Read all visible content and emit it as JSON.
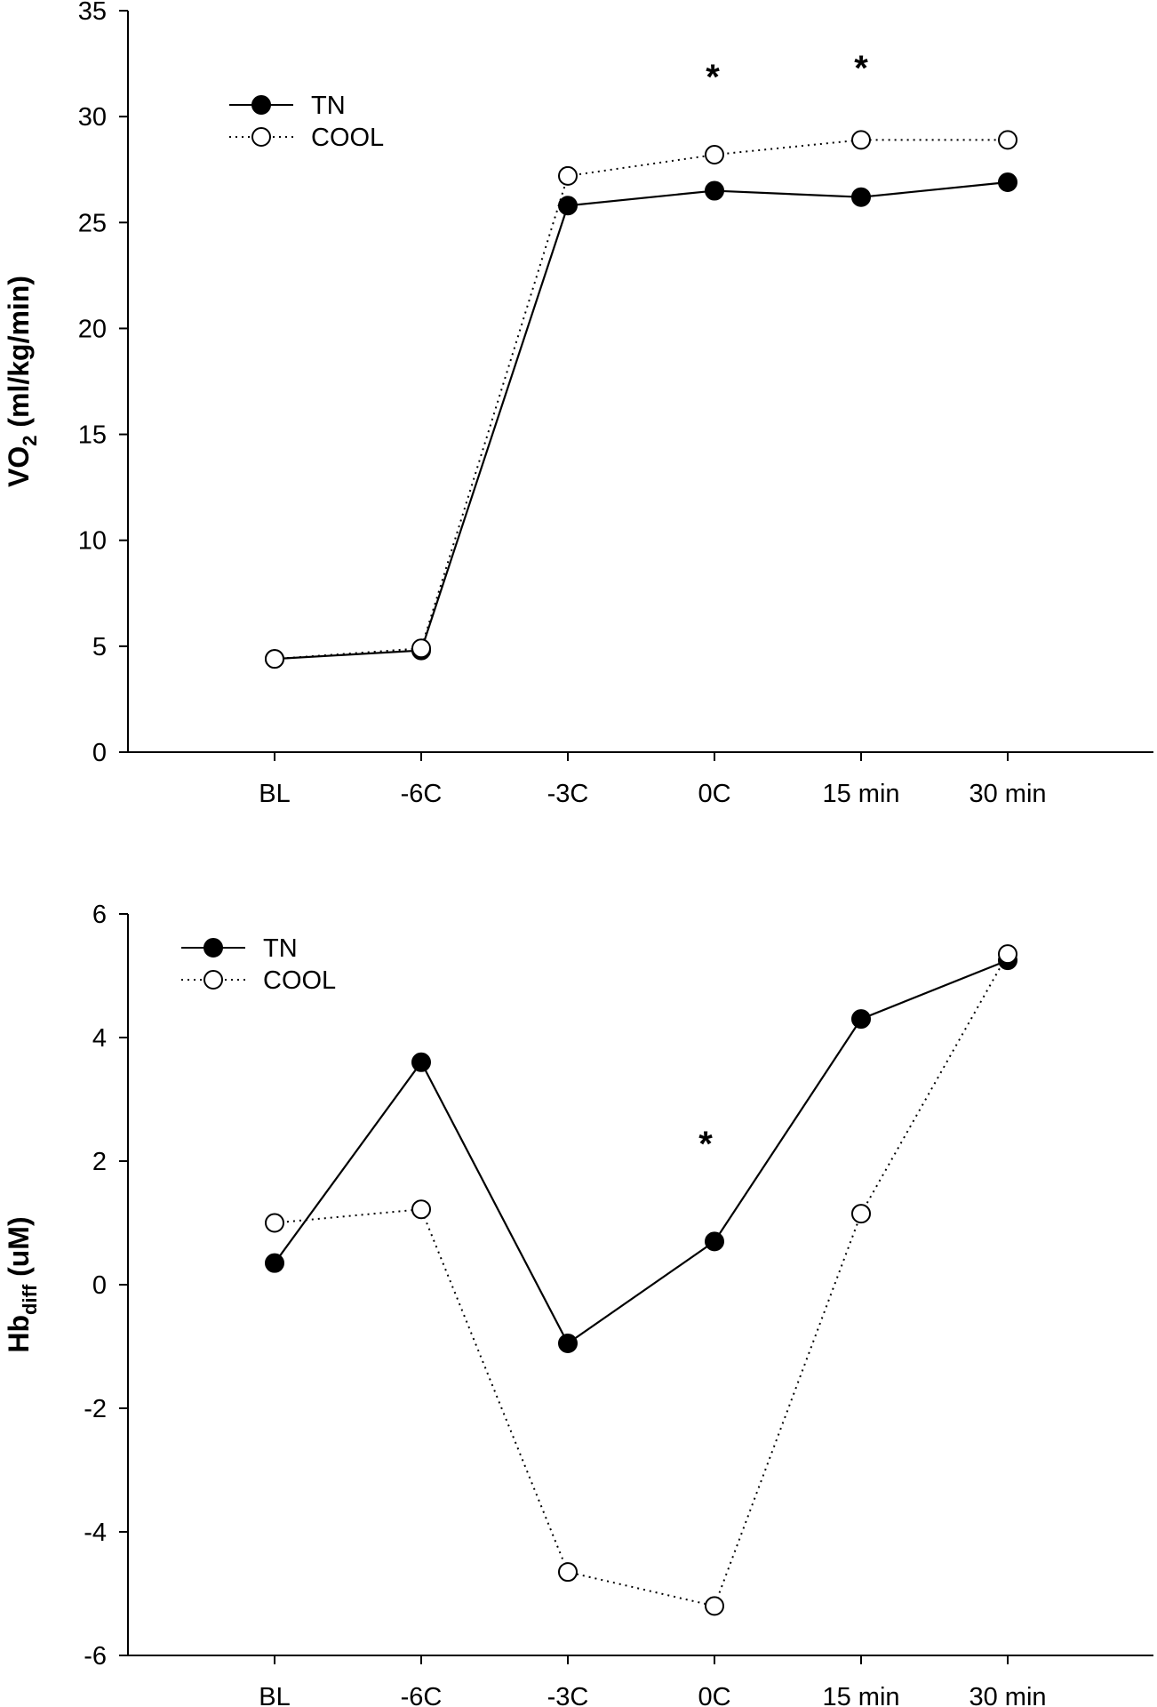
{
  "chart_data": [
    {
      "type": "line",
      "categories": [
        "BL",
        "-6C",
        "-3C",
        "0C",
        "15 min",
        "30 min"
      ],
      "ylabel_main": "VO",
      "ylabel_sub": "2",
      "ylabel_rest": " (ml/kg/min)",
      "ylim": [
        0,
        35
      ],
      "yticks": [
        0,
        5,
        10,
        15,
        20,
        25,
        30,
        35
      ],
      "grid": false,
      "legend_position": "top-left",
      "series": [
        {
          "name": "TN",
          "marker": "filled-circle",
          "line": "solid",
          "values": [
            4.4,
            4.8,
            25.8,
            26.5,
            26.2,
            26.9
          ]
        },
        {
          "name": "COOL",
          "marker": "open-circle",
          "line": "dotted",
          "values": [
            4.4,
            4.9,
            27.2,
            28.2,
            28.9,
            28.9
          ]
        }
      ],
      "annotations": [
        {
          "text": "*",
          "category": "0C"
        },
        {
          "text": "*",
          "category": "15 min"
        }
      ]
    },
    {
      "type": "line",
      "categories": [
        "BL",
        "-6C",
        "-3C",
        "0C",
        "15 min",
        "30 min"
      ],
      "ylabel_main": "Hb",
      "ylabel_sub": "diff",
      "ylabel_rest": " (uM)",
      "ylim": [
        -6,
        6
      ],
      "yticks": [
        -6,
        -4,
        -2,
        0,
        2,
        4,
        6
      ],
      "grid": false,
      "legend_position": "top-left",
      "series": [
        {
          "name": "TN",
          "marker": "filled-circle",
          "line": "solid",
          "values": [
            0.35,
            3.6,
            -0.95,
            0.7,
            4.3,
            5.25
          ]
        },
        {
          "name": "COOL",
          "marker": "open-circle",
          "line": "dotted",
          "values": [
            1.0,
            1.22,
            -4.65,
            -5.2,
            1.15,
            5.35
          ]
        }
      ],
      "annotations": [
        {
          "text": "*",
          "category": "0C"
        }
      ]
    }
  ]
}
